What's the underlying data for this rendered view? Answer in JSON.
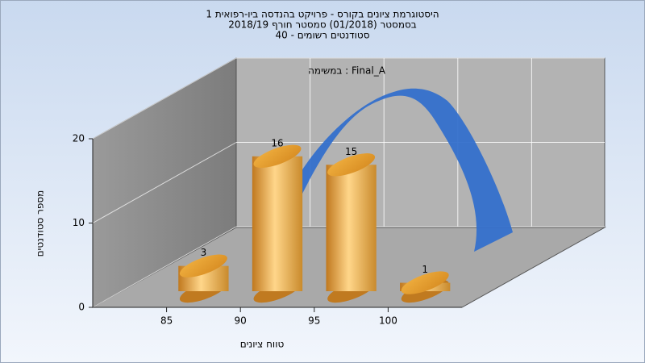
{
  "chart_data": {
    "type": "histogram",
    "title": "היסטוגרמת ציונים בקורס - פרויקט בהנדסה ביו-רפואית 1",
    "subtitle": [
      "בסמסטר  (01/2018)  סמסטר חורף 2018/19",
      "סטודנטים רשומים - 40"
    ],
    "annotation": "במשימה : Final_A",
    "x_label": "טווח ציונים",
    "y_label": "מספר סטודנטים",
    "bins": [
      85,
      90,
      95,
      100,
      105
    ],
    "values": [
      3,
      16,
      15,
      1
    ],
    "color": "#e8a640",
    "xlim": [
      80,
      105
    ],
    "xticks": [
      85,
      90,
      95,
      100
    ],
    "ylim": [
      0,
      20
    ],
    "yticks": [
      0,
      10,
      20
    ],
    "grid": true
  }
}
